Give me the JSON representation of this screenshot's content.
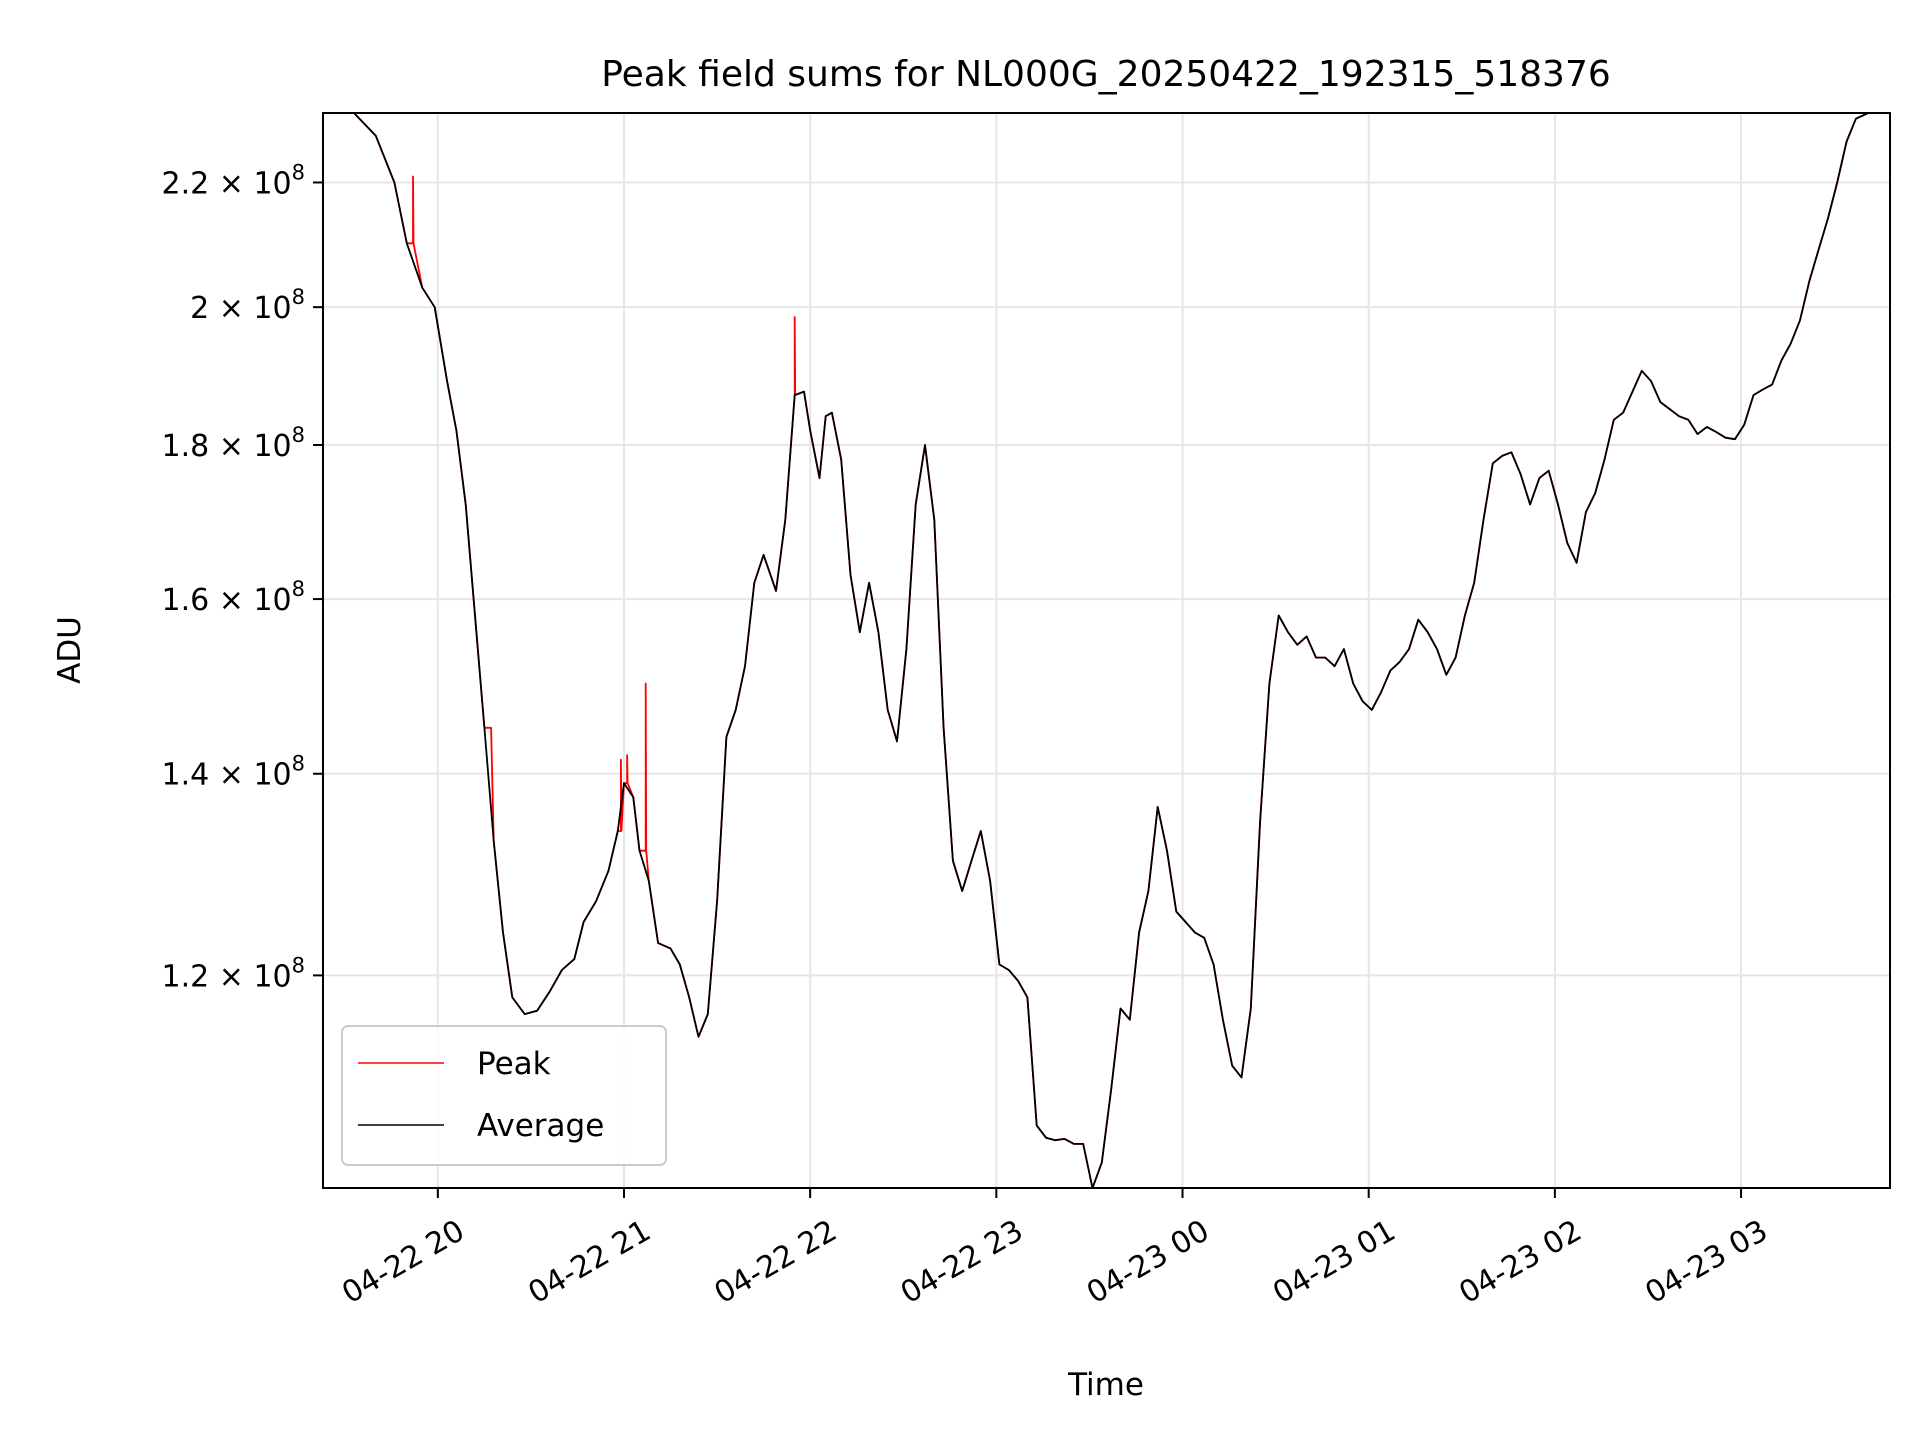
{
  "chart_data": {
    "type": "line",
    "title": "Peak field sums for NL000G_20250422_192315_518376",
    "xlabel": "Time",
    "ylabel": "ADU",
    "y_scale": "log",
    "grid": true,
    "legend_position": "lower-left",
    "xlim": [
      "2025-04-22 19:23",
      "2025-04-23 03:48"
    ],
    "ylim": [
      102000000,
      232000000
    ],
    "x_ticks": [
      {
        "t": "2025-04-22 20:00",
        "label": "04-22 20"
      },
      {
        "t": "2025-04-22 21:00",
        "label": "04-22 21"
      },
      {
        "t": "2025-04-22 22:00",
        "label": "04-22 22"
      },
      {
        "t": "2025-04-22 23:00",
        "label": "04-22 23"
      },
      {
        "t": "2025-04-23 00:00",
        "label": "04-23 00"
      },
      {
        "t": "2025-04-23 01:00",
        "label": "04-23 01"
      },
      {
        "t": "2025-04-23 02:00",
        "label": "04-23 02"
      },
      {
        "t": "2025-04-23 03:00",
        "label": "04-23 03"
      }
    ],
    "y_ticks": [
      {
        "value": 120000000,
        "mantissa": "1.2",
        "base": "10",
        "exp": "8"
      },
      {
        "value": 140000000,
        "mantissa": "1.4",
        "base": "10",
        "exp": "8"
      },
      {
        "value": 160000000,
        "mantissa": "1.6",
        "base": "10",
        "exp": "8"
      },
      {
        "value": 180000000,
        "mantissa": "1.8",
        "base": "10",
        "exp": "8"
      },
      {
        "value": 200000000,
        "mantissa": "2",
        "base": "10",
        "exp": "8"
      },
      {
        "value": 220000000,
        "mantissa": "2.2",
        "base": "10",
        "exp": "8"
      }
    ],
    "series": [
      {
        "name": "Average",
        "color": "#000000",
        "points": [
          [
            "2025-04-22 19:23",
            232000000
          ],
          [
            "2025-04-22 19:33",
            232000000
          ],
          [
            "2025-04-22 19:40",
            228000000
          ],
          [
            "2025-04-22 19:46",
            220000000
          ],
          [
            "2025-04-22 19:50",
            210000000
          ],
          [
            "2025-04-22 19:55",
            203000000
          ],
          [
            "2025-04-22 19:59",
            200000000
          ],
          [
            "2025-04-22 20:03",
            189000000
          ],
          [
            "2025-04-22 20:06",
            182000000
          ],
          [
            "2025-04-22 20:09",
            172000000
          ],
          [
            "2025-04-22 20:12",
            158000000
          ],
          [
            "2025-04-22 20:15",
            145000000
          ],
          [
            "2025-04-22 20:18",
            133000000
          ],
          [
            "2025-04-22 20:21",
            124000000
          ],
          [
            "2025-04-22 20:24",
            118000000
          ],
          [
            "2025-04-22 20:28",
            116500000
          ],
          [
            "2025-04-22 20:32",
            116800000
          ],
          [
            "2025-04-22 20:36",
            118500000
          ],
          [
            "2025-04-22 20:40",
            120500000
          ],
          [
            "2025-04-22 20:44",
            121500000
          ],
          [
            "2025-04-22 20:47",
            125000000
          ],
          [
            "2025-04-22 20:51",
            127000000
          ],
          [
            "2025-04-22 20:55",
            130000000
          ],
          [
            "2025-04-22 20:58",
            134000000
          ],
          [
            "2025-04-22 21:00",
            139000000
          ],
          [
            "2025-04-22 21:03",
            137500000
          ],
          [
            "2025-04-22 21:05",
            132000000
          ],
          [
            "2025-04-22 21:08",
            129000000
          ],
          [
            "2025-04-22 21:11",
            123000000
          ],
          [
            "2025-04-22 21:15",
            122500000
          ],
          [
            "2025-04-22 21:18",
            121000000
          ],
          [
            "2025-04-22 21:21",
            118000000
          ],
          [
            "2025-04-22 21:24",
            114500000
          ],
          [
            "2025-04-22 21:27",
            116500000
          ],
          [
            "2025-04-22 21:30",
            127000000
          ],
          [
            "2025-04-22 21:33",
            144000000
          ],
          [
            "2025-04-22 21:36",
            147000000
          ],
          [
            "2025-04-22 21:39",
            152000000
          ],
          [
            "2025-04-22 21:42",
            162000000
          ],
          [
            "2025-04-22 21:45",
            165500000
          ],
          [
            "2025-04-22 21:49",
            161000000
          ],
          [
            "2025-04-22 21:52",
            170000000
          ],
          [
            "2025-04-22 21:55",
            187000000
          ],
          [
            "2025-04-22 21:58",
            187500000
          ],
          [
            "2025-04-22 22:00",
            182000000
          ],
          [
            "2025-04-22 22:03",
            175500000
          ],
          [
            "2025-04-22 22:05",
            184000000
          ],
          [
            "2025-04-22 22:07",
            184500000
          ],
          [
            "2025-04-22 22:10",
            178000000
          ],
          [
            "2025-04-22 22:13",
            163000000
          ],
          [
            "2025-04-22 22:16",
            156000000
          ],
          [
            "2025-04-22 22:19",
            162000000
          ],
          [
            "2025-04-22 22:22",
            156000000
          ],
          [
            "2025-04-22 22:25",
            147000000
          ],
          [
            "2025-04-22 22:28",
            143500000
          ],
          [
            "2025-04-22 22:31",
            154000000
          ],
          [
            "2025-04-22 22:34",
            172000000
          ],
          [
            "2025-04-22 22:37",
            180000000
          ],
          [
            "2025-04-22 22:40",
            170000000
          ],
          [
            "2025-04-22 22:43",
            145000000
          ],
          [
            "2025-04-22 22:46",
            131000000
          ],
          [
            "2025-04-22 22:49",
            128000000
          ],
          [
            "2025-04-22 22:52",
            131000000
          ],
          [
            "2025-04-22 22:55",
            134000000
          ],
          [
            "2025-04-22 22:58",
            129000000
          ],
          [
            "2025-04-22 23:01",
            121000000
          ],
          [
            "2025-04-22 23:04",
            120500000
          ],
          [
            "2025-04-22 23:07",
            119500000
          ],
          [
            "2025-04-22 23:10",
            118000000
          ],
          [
            "2025-04-22 23:13",
            107000000
          ],
          [
            "2025-04-22 23:16",
            106000000
          ],
          [
            "2025-04-22 23:19",
            105800000
          ],
          [
            "2025-04-22 23:22",
            105900000
          ],
          [
            "2025-04-22 23:25",
            105500000
          ],
          [
            "2025-04-22 23:28",
            105500000
          ],
          [
            "2025-04-22 23:31",
            102000000
          ],
          [
            "2025-04-22 23:34",
            104000000
          ],
          [
            "2025-04-22 23:37",
            110000000
          ],
          [
            "2025-04-22 23:40",
            117000000
          ],
          [
            "2025-04-22 23:43",
            116000000
          ],
          [
            "2025-04-22 23:46",
            124000000
          ],
          [
            "2025-04-22 23:49",
            128000000
          ],
          [
            "2025-04-22 23:52",
            136500000
          ],
          [
            "2025-04-22 23:55",
            132000000
          ],
          [
            "2025-04-22 23:58",
            126000000
          ],
          [
            "2025-04-23 00:01",
            125000000
          ],
          [
            "2025-04-23 00:04",
            124000000
          ],
          [
            "2025-04-23 00:07",
            123500000
          ],
          [
            "2025-04-23 00:10",
            121000000
          ],
          [
            "2025-04-23 00:13",
            116000000
          ],
          [
            "2025-04-23 00:16",
            112000000
          ],
          [
            "2025-04-23 00:19",
            111000000
          ],
          [
            "2025-04-23 00:22",
            117000000
          ],
          [
            "2025-04-23 00:25",
            135000000
          ],
          [
            "2025-04-23 00:28",
            150000000
          ],
          [
            "2025-04-23 00:31",
            158000000
          ],
          [
            "2025-04-23 00:34",
            156000000
          ],
          [
            "2025-04-23 00:37",
            154500000
          ],
          [
            "2025-04-23 00:40",
            155500000
          ],
          [
            "2025-04-23 00:43",
            153000000
          ],
          [
            "2025-04-23 00:46",
            153000000
          ],
          [
            "2025-04-23 00:49",
            152000000
          ],
          [
            "2025-04-23 00:52",
            154000000
          ],
          [
            "2025-04-23 00:55",
            150000000
          ],
          [
            "2025-04-23 00:58",
            148000000
          ],
          [
            "2025-04-23 01:01",
            147000000
          ],
          [
            "2025-04-23 01:04",
            149000000
          ],
          [
            "2025-04-23 01:07",
            151500000
          ],
          [
            "2025-04-23 01:10",
            152500000
          ],
          [
            "2025-04-23 01:13",
            154000000
          ],
          [
            "2025-04-23 01:16",
            157500000
          ],
          [
            "2025-04-23 01:19",
            156000000
          ],
          [
            "2025-04-23 01:22",
            154000000
          ],
          [
            "2025-04-23 01:25",
            151000000
          ],
          [
            "2025-04-23 01:28",
            153000000
          ],
          [
            "2025-04-23 01:31",
            158000000
          ],
          [
            "2025-04-23 01:34",
            162000000
          ],
          [
            "2025-04-23 01:37",
            170000000
          ],
          [
            "2025-04-23 01:40",
            177500000
          ],
          [
            "2025-04-23 01:43",
            178500000
          ],
          [
            "2025-04-23 01:46",
            179000000
          ],
          [
            "2025-04-23 01:49",
            176000000
          ],
          [
            "2025-04-23 01:52",
            172000000
          ],
          [
            "2025-04-23 01:55",
            175500000
          ],
          [
            "2025-04-23 01:58",
            176500000
          ],
          [
            "2025-04-23 02:01",
            172000000
          ],
          [
            "2025-04-23 02:04",
            167000000
          ],
          [
            "2025-04-23 02:07",
            164500000
          ],
          [
            "2025-04-23 02:10",
            171000000
          ],
          [
            "2025-04-23 02:13",
            173500000
          ],
          [
            "2025-04-23 02:16",
            178000000
          ],
          [
            "2025-04-23 02:19",
            183500000
          ],
          [
            "2025-04-23 02:22",
            184500000
          ],
          [
            "2025-04-23 02:25",
            187500000
          ],
          [
            "2025-04-23 02:28",
            190500000
          ],
          [
            "2025-04-23 02:31",
            189000000
          ],
          [
            "2025-04-23 02:34",
            186000000
          ],
          [
            "2025-04-23 02:37",
            185000000
          ],
          [
            "2025-04-23 02:40",
            184000000
          ],
          [
            "2025-04-23 02:43",
            183500000
          ],
          [
            "2025-04-23 02:46",
            181500000
          ],
          [
            "2025-04-23 02:49",
            182500000
          ],
          [
            "2025-04-23 02:52",
            181800000
          ],
          [
            "2025-04-23 02:55",
            181000000
          ],
          [
            "2025-04-23 02:58",
            180800000
          ],
          [
            "2025-04-23 03:01",
            182800000
          ],
          [
            "2025-04-23 03:04",
            187000000
          ],
          [
            "2025-04-23 03:07",
            187800000
          ],
          [
            "2025-04-23 03:10",
            188500000
          ],
          [
            "2025-04-23 03:13",
            192000000
          ],
          [
            "2025-04-23 03:16",
            194500000
          ],
          [
            "2025-04-23 03:19",
            198000000
          ],
          [
            "2025-04-23 03:22",
            204000000
          ],
          [
            "2025-04-23 03:25",
            209000000
          ],
          [
            "2025-04-23 03:28",
            214000000
          ],
          [
            "2025-04-23 03:31",
            220000000
          ],
          [
            "2025-04-23 03:34",
            227000000
          ],
          [
            "2025-04-23 03:37",
            231000000
          ],
          [
            "2025-04-23 03:41",
            232000000
          ],
          [
            "2025-04-23 03:48",
            232000000
          ]
        ]
      },
      {
        "name": "Peak",
        "color": "#ff0000",
        "note_shape": "follows Average with spikes",
        "spikes": [
          [
            "2025-04-22 19:52",
            221000000
          ],
          [
            "2025-04-22 20:17",
            145000000
          ],
          [
            "2025-04-22 20:59",
            141500000
          ],
          [
            "2025-04-22 21:01",
            142000000
          ],
          [
            "2025-04-22 21:07",
            150000000
          ],
          [
            "2025-04-22 21:55",
            198500000
          ]
        ]
      }
    ]
  },
  "legend": {
    "items": [
      {
        "label": "Peak",
        "color": "#ff0000"
      },
      {
        "label": "Average",
        "color": "#000000"
      }
    ]
  }
}
